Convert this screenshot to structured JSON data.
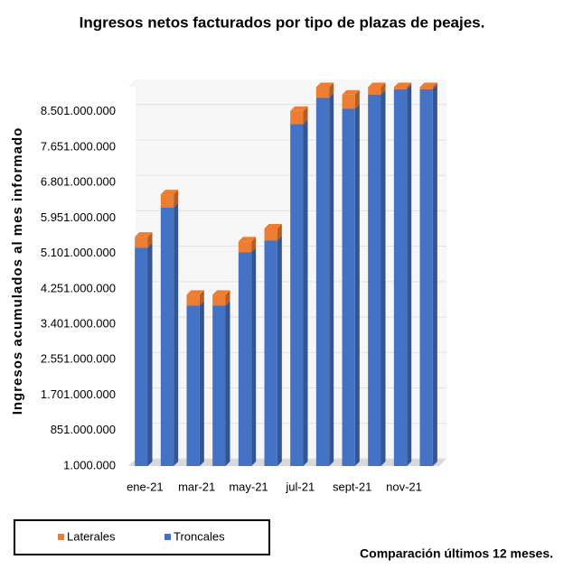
{
  "chart_data": {
    "type": "stacked_bar",
    "title": "Ingresos netos facturados por tipo de plazas de peajes.",
    "y_label": "Ingresos acumulados al mes informado",
    "note": "Comparación últimos 12 meses.",
    "categories": [
      "ene-21",
      null,
      "mar-21",
      null,
      "may-21",
      null,
      "jul-21",
      null,
      "sept-21",
      null,
      "nov-21",
      null
    ],
    "series": [
      {
        "name": "Troncales",
        "color": "#4472c4",
        "values": [
          5240000000,
          6200000000,
          3850000000,
          3850000000,
          5130000000,
          5410000000,
          8200000000,
          8830000000,
          8570000000,
          8910000000,
          9040000000,
          9040000000
        ]
      },
      {
        "name": "Laterales",
        "color": "#ed7d31",
        "values": [
          260000000,
          320000000,
          260000000,
          260000000,
          260000000,
          290000000,
          320000000,
          260000000,
          340000000,
          180000000,
          50000000,
          50000000
        ]
      }
    ],
    "ylim": [
      1000000,
      9100000000
    ],
    "yticks": [
      {
        "value": 1000000,
        "label": "1.000.000"
      },
      {
        "value": 851000000,
        "label": "851.000.000"
      },
      {
        "value": 1701000000,
        "label": "1.701.000.000"
      },
      {
        "value": 2551000000,
        "label": "2.551.000.000"
      },
      {
        "value": 3401000000,
        "label": "3.401.000.000"
      },
      {
        "value": 4251000000,
        "label": "4.251.000.000"
      },
      {
        "value": 5101000000,
        "label": "5.101.000.000"
      },
      {
        "value": 5951000000,
        "label": "5.951.000.000"
      },
      {
        "value": 6801000000,
        "label": "6.801.000.000"
      },
      {
        "value": 7651000000,
        "label": "7.651.000.000"
      },
      {
        "value": 8501000000,
        "label": "8.501.000.000"
      }
    ],
    "grid": true
  }
}
